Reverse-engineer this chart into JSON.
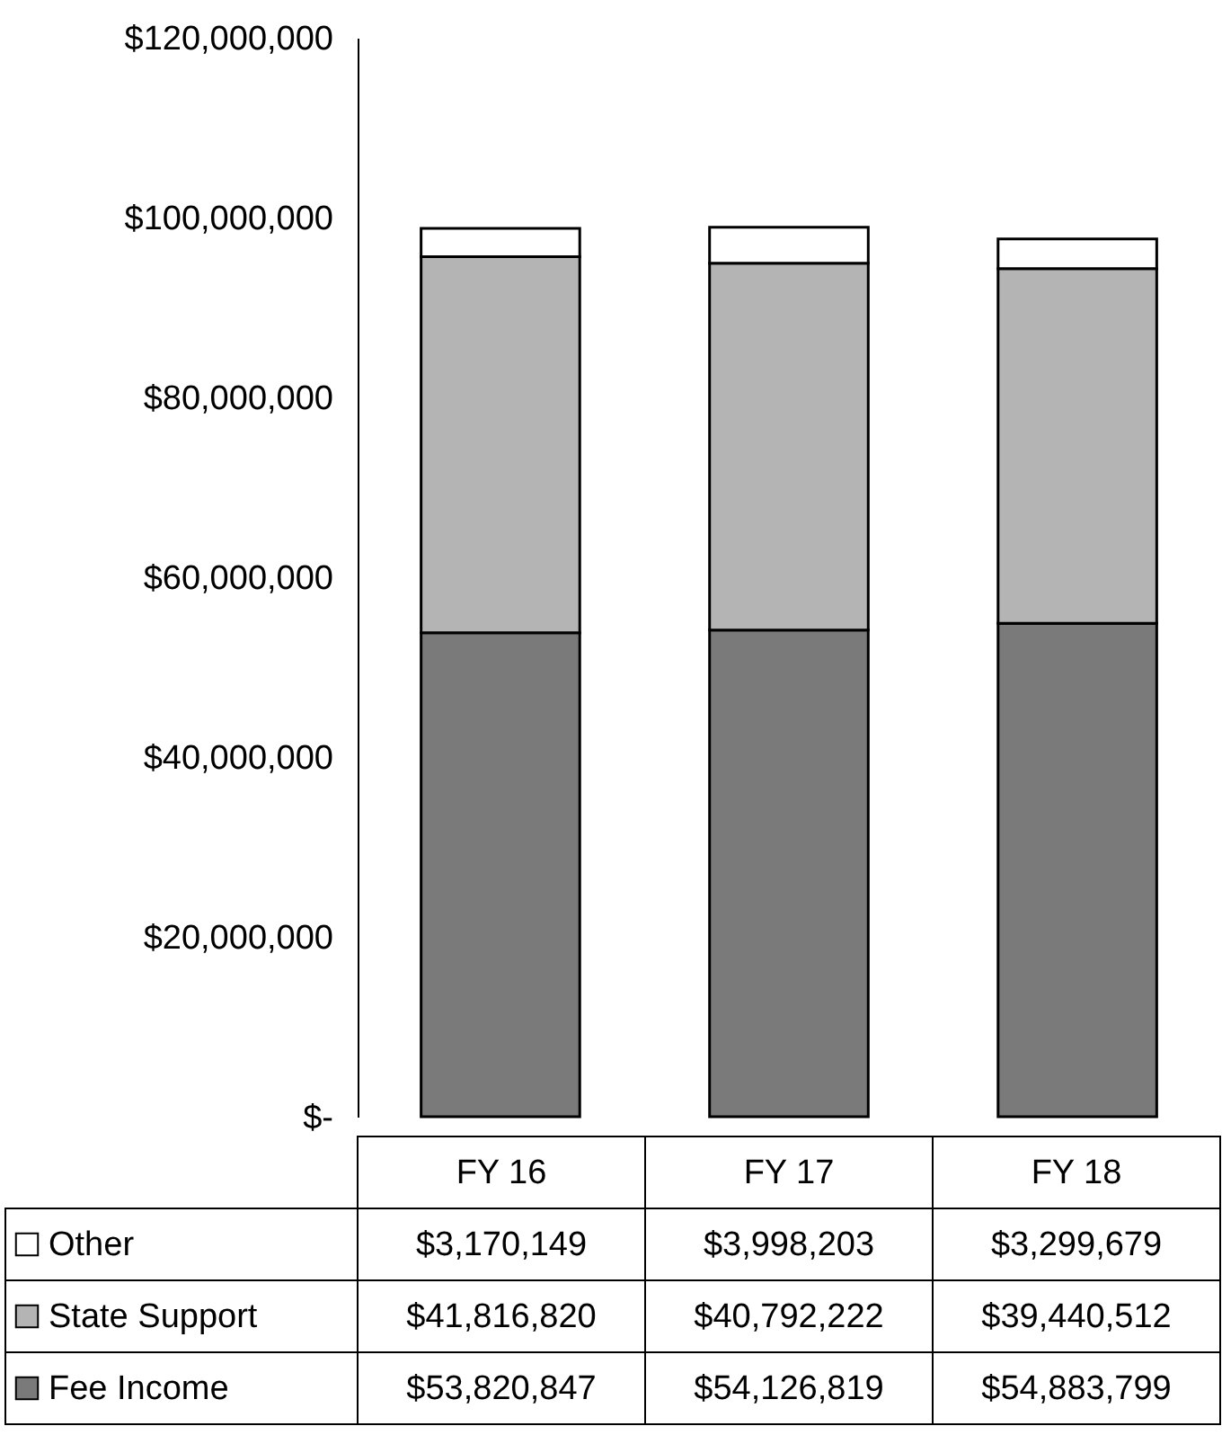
{
  "chart_data": {
    "type": "bar",
    "stacked": true,
    "legend": "bottom left",
    "categories": [
      "FY 16",
      "FY 17",
      "FY 18"
    ],
    "series": [
      {
        "name": "Fee Income",
        "color": "#7a7a7a",
        "values": [
          53820847,
          54126819,
          54883799
        ],
        "value_labels": [
          "$53,820,847",
          "$54,126,819",
          "$54,883,799"
        ]
      },
      {
        "name": "State Support",
        "color": "#b4b4b4",
        "values": [
          41816820,
          40792222,
          39440512
        ],
        "value_labels": [
          "$41,816,820",
          "$40,792,222",
          "$39,440,512"
        ]
      },
      {
        "name": "Other",
        "color": "#ffffff",
        "values": [
          3170149,
          3998203,
          3299679
        ],
        "value_labels": [
          "$3,170,149",
          "$3,998,203",
          "$3,299,679"
        ]
      }
    ],
    "ylim": [
      0,
      120000000
    ],
    "yticks": [
      {
        "value": 0,
        "label": "$-"
      },
      {
        "value": 20000000,
        "label": "$20,000,000"
      },
      {
        "value": 40000000,
        "label": "$40,000,000"
      },
      {
        "value": 60000000,
        "label": "$60,000,000"
      },
      {
        "value": 80000000,
        "label": "$80,000,000"
      },
      {
        "value": 100000000,
        "label": "$100,000,000"
      },
      {
        "value": 120000000,
        "label": "$120,000,000"
      }
    ]
  }
}
